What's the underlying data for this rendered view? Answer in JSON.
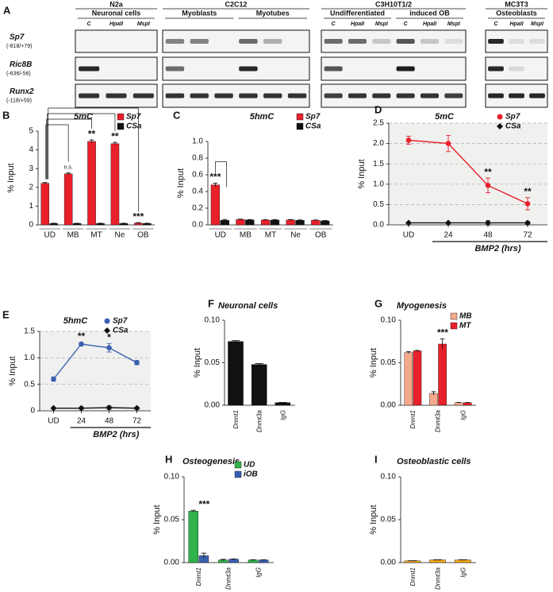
{
  "gel": {
    "panel": "A",
    "groups": [
      {
        "name": "N2a",
        "conditions": [
          "Neuronal cells"
        ]
      },
      {
        "name": "C2C12",
        "conditions": [
          "Myoblasts",
          "Myotubes"
        ]
      },
      {
        "name": "C3H10T1/2",
        "conditions": [
          "Undifferentiated",
          "induced OB"
        ]
      },
      {
        "name": "MC3T3",
        "conditions": [
          "Osteoblasts"
        ]
      }
    ],
    "lanes": [
      "C",
      "HpaII",
      "MspI"
    ],
    "rows": [
      {
        "gene": "Sp7",
        "region": "(-818/+79)"
      },
      {
        "gene": "Ric8B",
        "region": "(-636/-56)"
      },
      {
        "gene": "Runx2",
        "region": "(-118/+59)"
      }
    ]
  },
  "chart_data": [
    {
      "type": "bar",
      "panel": "B",
      "title": "5mC",
      "ylabel": "% Input",
      "categories": [
        "UD",
        "MB",
        "MT",
        "Ne",
        "OB"
      ],
      "series": [
        {
          "name": "Sp7",
          "color": "#e8202a",
          "values": [
            2.22,
            2.72,
            4.45,
            4.33,
            0.1
          ],
          "errors": [
            0.04,
            0.05,
            0.08,
            0.07,
            0.02
          ]
        },
        {
          "name": "CSa",
          "color": "#111111",
          "values": [
            0.08,
            0.08,
            0.08,
            0.08,
            0.08
          ],
          "errors": [
            0.01,
            0.01,
            0.01,
            0.01,
            0.01
          ]
        }
      ],
      "ylim": [
        0,
        5
      ],
      "yticks": [
        0,
        1,
        2,
        3,
        4,
        5
      ],
      "brackets_from": "UD",
      "annotations": [
        {
          "text": "n.s.",
          "x": "MB"
        },
        {
          "text": "**",
          "x": "MT"
        },
        {
          "text": "**",
          "x": "Ne"
        },
        {
          "text": "***",
          "x": "OB"
        }
      ]
    },
    {
      "type": "bar",
      "panel": "C",
      "title": "5hmC",
      "ylabel": "% Input",
      "categories": [
        "UD",
        "MB",
        "MT",
        "Ne",
        "OB"
      ],
      "series": [
        {
          "name": "Sp7",
          "color": "#e8202a",
          "values": [
            0.48,
            0.065,
            0.058,
            0.06,
            0.055
          ],
          "errors": [
            0.02,
            0.004,
            0.004,
            0.004,
            0.004
          ]
        },
        {
          "name": "CSa",
          "color": "#111111",
          "values": [
            0.055,
            0.06,
            0.058,
            0.055,
            0.048
          ],
          "errors": [
            0.01,
            0.004,
            0.006,
            0.004,
            0.004
          ]
        }
      ],
      "ylim": [
        0,
        1.0
      ],
      "yticks": [
        {
          "value": 0,
          "label": "0.0"
        },
        {
          "value": 0.2,
          "label": "0.2"
        },
        {
          "value": 0.4,
          "label": "0.4"
        },
        {
          "value": 0.6,
          "label": "0.6"
        },
        {
          "value": 0.8,
          "label": "0.8"
        },
        {
          "value": 1.0,
          "label": "1.0"
        }
      ],
      "brackets_from": "UD",
      "annotations": [
        {
          "text": "***",
          "x": "UD"
        }
      ]
    },
    {
      "type": "line",
      "panel": "D",
      "title": "5mC",
      "ylabel": "% Input",
      "xlabel": "BMP2 (hrs)",
      "categories": [
        "UD",
        "24",
        "48",
        "72"
      ],
      "series": [
        {
          "name": "Sp7",
          "color": "#e8202a",
          "marker": "circle",
          "values": [
            2.08,
            2.0,
            0.97,
            0.52
          ],
          "errors": [
            0.1,
            0.2,
            0.18,
            0.15
          ]
        },
        {
          "name": "CSa",
          "color": "#111111",
          "marker": "diamond",
          "values": [
            0.05,
            0.05,
            0.05,
            0.05
          ],
          "errors": [
            0.01,
            0.02,
            0.05,
            0.03
          ]
        }
      ],
      "ylim": [
        0,
        2.5
      ],
      "yticks": [
        {
          "value": 0,
          "label": "0.0"
        },
        {
          "value": 0.5,
          "label": "0.5"
        },
        {
          "value": 1.0,
          "label": "1.0"
        },
        {
          "value": 1.5,
          "label": "1.5"
        },
        {
          "value": 2.0,
          "label": "2.0"
        },
        {
          "value": 2.5,
          "label": "2.5"
        }
      ],
      "grid": true,
      "background": "#f0f0ef",
      "annotations": [
        {
          "text": "**",
          "x": "48"
        },
        {
          "text": "**",
          "x": "72"
        }
      ]
    },
    {
      "type": "line",
      "panel": "E",
      "title": "5hmC",
      "ylabel": "% Input",
      "xlabel": "BMP2 (hrs)",
      "categories": [
        "UD",
        "24",
        "48",
        "72"
      ],
      "series": [
        {
          "name": "Sp7",
          "color": "#3a5fb0",
          "marker": "circle",
          "values": [
            0.6,
            1.26,
            1.19,
            0.91
          ],
          "errors": [
            0.04,
            0.03,
            0.08,
            0.04
          ]
        },
        {
          "name": "CSa",
          "color": "#111111",
          "marker": "diamond",
          "values": [
            0.05,
            0.05,
            0.06,
            0.05
          ],
          "errors": [
            0.01,
            0.02,
            0.03,
            0.02
          ]
        }
      ],
      "ylim": [
        0,
        1.5
      ],
      "yticks": [
        {
          "value": 0,
          "label": "0"
        },
        {
          "value": 0.5,
          "label": "0.5"
        },
        {
          "value": 1.0,
          "label": "1.0"
        },
        {
          "value": 1.5,
          "label": "1.5"
        }
      ],
      "grid": true,
      "background": "#f0f0ef",
      "annotations": [
        {
          "text": "**",
          "x": "24"
        },
        {
          "text": "*",
          "x": "48"
        }
      ]
    },
    {
      "type": "bar",
      "panel": "F",
      "title": "Neuronal cells",
      "ylabel": "% Input",
      "categories": [
        "Dnmt1",
        "Dnmt3a",
        "IgG"
      ],
      "values": [
        0.075,
        0.048,
        0.003
      ],
      "errors": [
        0.001,
        0.001,
        0.0003
      ],
      "color": "#111111",
      "ylim": [
        0,
        0.1
      ],
      "yticks": [
        {
          "value": 0,
          "label": "0.00"
        },
        {
          "value": 0.05,
          "label": "0.05"
        },
        {
          "value": 0.1,
          "label": "0.10"
        }
      ]
    },
    {
      "type": "bar",
      "panel": "G",
      "title": "Myogenesis",
      "ylabel": "% Input",
      "categories": [
        "Dnmt1",
        "Dnmt3a",
        "IgG"
      ],
      "series": [
        {
          "name": "MB",
          "color": "#f5a98a",
          "values": [
            0.062,
            0.014,
            0.003
          ],
          "errors": [
            0.001,
            0.002,
            0.0003
          ]
        },
        {
          "name": "MT",
          "color": "#e8202a",
          "values": [
            0.064,
            0.072,
            0.003
          ],
          "errors": [
            0.0005,
            0.006,
            0.0003
          ]
        }
      ],
      "ylim": [
        0,
        0.1
      ],
      "yticks": [
        {
          "value": 0,
          "label": "0.00"
        },
        {
          "value": 0.05,
          "label": "0.05"
        },
        {
          "value": 0.1,
          "label": "0.10"
        }
      ],
      "annotations": [
        {
          "text": "***",
          "x": "Dnmt3a"
        }
      ]
    },
    {
      "type": "bar",
      "panel": "H",
      "title": "Osteogenesis",
      "ylabel": "% Input",
      "categories": [
        "Dnmt1",
        "Dnmt3a",
        "IgG"
      ],
      "series": [
        {
          "name": "UD",
          "color": "#2fb34a",
          "values": [
            0.06,
            0.003,
            0.003
          ],
          "errors": [
            0.001,
            0.0008,
            0.0003
          ]
        },
        {
          "name": "iOB",
          "color": "#3a5fb0",
          "values": [
            0.008,
            0.004,
            0.003
          ],
          "errors": [
            0.003,
            0.0003,
            0.0003
          ]
        }
      ],
      "ylim": [
        0,
        0.1
      ],
      "yticks": [
        {
          "value": 0,
          "label": "0.00"
        },
        {
          "value": 0.05,
          "label": "0.05"
        },
        {
          "value": 0.1,
          "label": "0.10"
        }
      ],
      "annotations": [
        {
          "text": "***",
          "x": "Dnmt1"
        }
      ]
    },
    {
      "type": "bar",
      "panel": "I",
      "title": "Osteoblastic cells",
      "ylabel": "% Input",
      "categories": [
        "Dnmt1",
        "Dnmt3a",
        "IgG"
      ],
      "values": [
        0.002,
        0.003,
        0.003
      ],
      "errors": [
        0.0002,
        0.0003,
        0.0003
      ],
      "color": "#f0a81c",
      "ylim": [
        0,
        0.1
      ],
      "yticks": [
        {
          "value": 0,
          "label": "0.00"
        },
        {
          "value": 0.05,
          "label": "0.05"
        },
        {
          "value": 0.1,
          "label": "0.10"
        }
      ]
    }
  ]
}
